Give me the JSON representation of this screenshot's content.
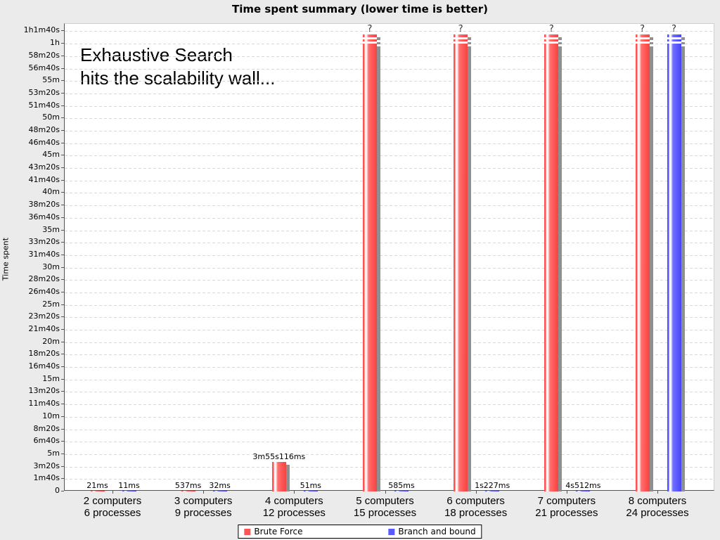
{
  "title": "Time spent summary (lower time is better)",
  "annotation": {
    "line1": "Exhaustive Search",
    "line2": "hits the scalability wall..."
  },
  "axes": {
    "y_label": "Time spent",
    "y_ticks": [
      "0",
      "1m40s",
      "3m20s",
      "5m",
      "6m40s",
      "8m20s",
      "10m",
      "11m40s",
      "13m20s",
      "15m",
      "16m40s",
      "18m20s",
      "20m",
      "21m40s",
      "23m20s",
      "25m",
      "26m40s",
      "28m20s",
      "30m",
      "31m40s",
      "33m20s",
      "35m",
      "36m40s",
      "38m20s",
      "40m",
      "41m40s",
      "43m20s",
      "45m",
      "46m40s",
      "48m20s",
      "50m",
      "51m40s",
      "53m20s",
      "55m",
      "56m40s",
      "58m20s",
      "1h",
      "1h1m40s"
    ]
  },
  "colors": {
    "brute_force": "#ff5555",
    "branch_and_bound": "#5a5aff",
    "shadow": "#8f8f8f",
    "background": "#ebebeb",
    "plot_background": "#ffffff",
    "gridline": "#d8d8d8"
  },
  "chart_data": {
    "type": "bar",
    "title": "Time spent summary (lower time is better)",
    "xlabel": "",
    "ylabel": "Time spent",
    "ylim_seconds": [
      0,
      3700
    ],
    "y_tick_interval_seconds": 100,
    "grid": "horizontal-dashed",
    "legend_position": "bottom",
    "categories": [
      {
        "line1": "2 computers",
        "line2": "6 processes"
      },
      {
        "line1": "3 computers",
        "line2": "9 processes"
      },
      {
        "line1": "4 computers",
        "line2": "12 processes"
      },
      {
        "line1": "5 computers",
        "line2": "15 processes"
      },
      {
        "line1": "6 computers",
        "line2": "18 processes"
      },
      {
        "line1": "7 computers",
        "line2": "21 processes"
      },
      {
        "line1": "8 computers",
        "line2": "24 processes"
      }
    ],
    "series": [
      {
        "name": "Brute Force",
        "color": "#ff5555",
        "values_ms": [
          21,
          537,
          235116,
          null,
          null,
          null,
          null
        ],
        "labels": [
          "21ms",
          "537ms",
          "3m55s116ms",
          "?",
          "?",
          "?",
          "?"
        ],
        "unknown": [
          false,
          false,
          false,
          true,
          true,
          true,
          true
        ]
      },
      {
        "name": "Branch and bound",
        "color": "#5a5aff",
        "values_ms": [
          11,
          32,
          51,
          585,
          1227,
          4512,
          null
        ],
        "labels": [
          "11ms",
          "32ms",
          "51ms",
          "585ms",
          "1s227ms",
          "4s512ms",
          "?"
        ],
        "unknown": [
          false,
          false,
          false,
          false,
          false,
          false,
          true
        ]
      }
    ]
  }
}
